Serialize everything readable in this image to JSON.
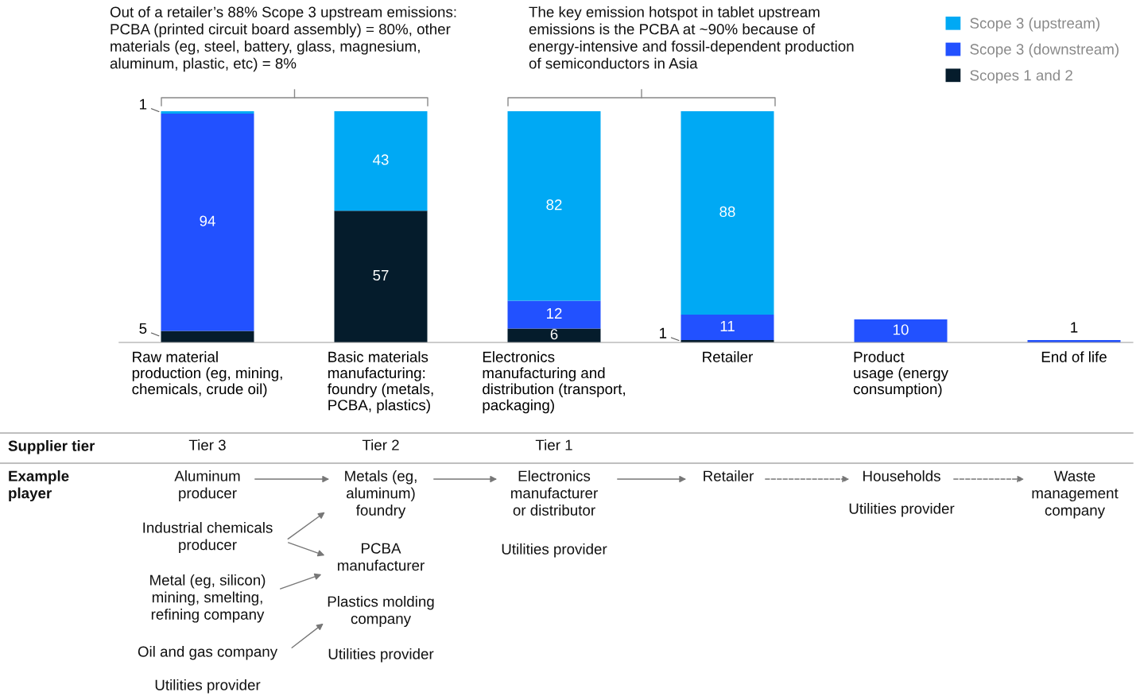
{
  "chart_data": {
    "type": "bar",
    "stacked": true,
    "data_labels": true,
    "legend": "top right",
    "grid": false,
    "categories": [
      "Raw material\nproduction (eg, mining,\nchemicals, crude oil)",
      "Basic materials\nmanufacturing:\nfoundry (metals,\nPCBA, plastics)",
      "Electronics\nmanufacturing and\ndistribution (transport,\npackaging)",
      "Retailer",
      "Product\nusage (energy\nconsumption)",
      "End of life"
    ],
    "series": [
      {
        "name": "Scopes 1 and 2",
        "color": "#051c2c",
        "values": [
          5,
          57,
          6,
          1,
          null,
          null
        ]
      },
      {
        "name": "Scope 3 (downstream)",
        "color": "#2251ff",
        "values": [
          94,
          null,
          12,
          11,
          10,
          1
        ]
      },
      {
        "name": "Scope 3 (upstream)",
        "color": "#00a9f4",
        "values": [
          1,
          43,
          82,
          88,
          null,
          null
        ]
      }
    ],
    "annotations": [
      "Out of a retailer’s 88% Scope 3 upstream emissions:\nPCBA (printed circuit board assembly) = 80%, other\nmaterials (eg, steel, battery, glass, magnesium,\naluminum, plastic, etc) = 8%",
      "The key emission hotspot in tablet upstream\nemissions is the PCBA at ~90% because of\nenergy-intensive and fossil-dependent production\nof semiconductors in Asia",
      "Supplier tier",
      "Tier 3",
      "Tier 2",
      "Tier 1",
      "Example\nplayer",
      "Aluminum\nproducer",
      "Industrial chemicals\nproducer",
      "Metal (eg, silicon)\nmining, smelting,\nrefining company",
      "Oil and gas company",
      "Utilities provider",
      "Metals (eg,\naluminum)\nfoundry",
      "PCBA\nmanufacturer",
      "Plastics molding\ncompany",
      "Utilities provider",
      "Electronics\nmanufacturer\nor distributor",
      "Utilities provider",
      "Retailer",
      "Households",
      "Utilities provider",
      "Waste\nmanagement\ncompany"
    ]
  }
}
